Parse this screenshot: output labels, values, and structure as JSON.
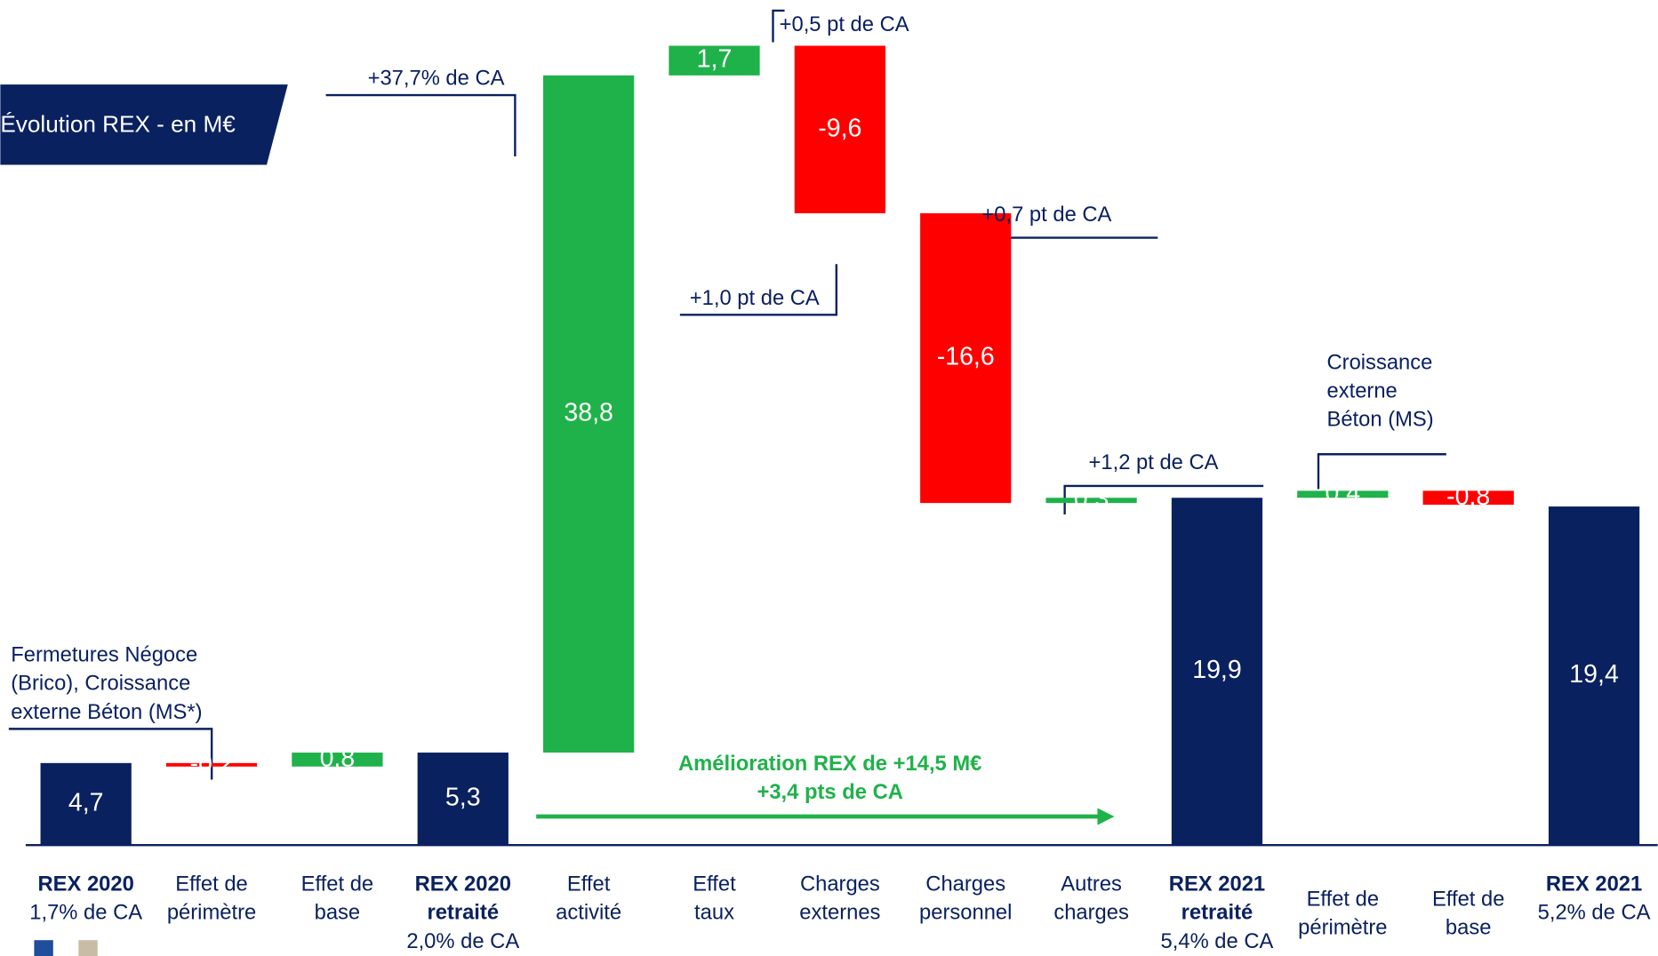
{
  "chart_data": {
    "type": "waterfall",
    "title": "Évolution REX - en M€",
    "categories": [
      [
        "REX 2020",
        "1,7% de CA"
      ],
      [
        "Effet de",
        "périmètre"
      ],
      [
        "Effet de",
        "base"
      ],
      [
        "REX 2020",
        "retraité",
        "2,0% de CA"
      ],
      [
        "Effet",
        "activité"
      ],
      [
        "Effet",
        "taux"
      ],
      [
        "Charges",
        "externes"
      ],
      [
        "Charges",
        "personnel"
      ],
      [
        "Autres",
        "charges"
      ],
      [
        "REX 2021",
        "retraité",
        "5,4% de CA"
      ],
      [
        "Effet de",
        "périmètre"
      ],
      [
        "Effet de",
        "base"
      ],
      [
        "REX 2021",
        "5,2% de CA"
      ]
    ],
    "values": [
      4.7,
      -0.2,
      0.8,
      5.3,
      38.8,
      1.7,
      -9.6,
      -16.6,
      0.3,
      19.9,
      0.4,
      -0.8,
      19.4
    ],
    "value_labels": [
      "4,7",
      "-0,2",
      "0,8",
      "5,3",
      "38,8",
      "1,7",
      "-9,6",
      "-16,6",
      "0,3",
      "19,9",
      "0,4",
      "-0,8",
      "19,4"
    ],
    "is_total": [
      true,
      false,
      false,
      true,
      false,
      false,
      false,
      false,
      false,
      true,
      false,
      false,
      true
    ],
    "colors": {
      "total": "#0a2160",
      "increase": "#1fb24a",
      "decrease": "#ff0000"
    },
    "ylim": [
      0,
      46
    ],
    "annotations": [
      [
        "+37,7% de CA"
      ],
      [
        "+0,5 pt de CA"
      ],
      [
        "+1,0 pt de CA"
      ],
      [
        "+0,7 pt  de CA"
      ],
      [
        "+1,2 pt  de CA"
      ],
      [
        "Croissance",
        "externe",
        "Béton (MS)"
      ],
      [
        "Fermetures Négoce",
        "(Brico), Croissance",
        "externe Béton (MS*)"
      ]
    ],
    "highlight": [
      "Amélioration REX de +14,5 M€",
      "+3,4 pts de CA"
    ]
  }
}
